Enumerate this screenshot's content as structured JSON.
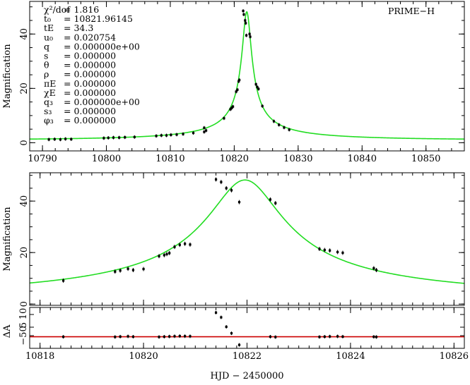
{
  "chart_data": [
    {
      "type": "scatter",
      "panel": "full light curve",
      "ylabel": "Magnification",
      "xlim": [
        10788,
        10856
      ],
      "ylim": [
        -3,
        52
      ],
      "x_ticks": [
        10790,
        10800,
        10810,
        10820,
        10830,
        10840,
        10850
      ],
      "y_ticks": [
        0,
        20,
        40
      ],
      "instrument_label": "PRIME−H",
      "model_color": "#22dd22",
      "point_color": "#000000",
      "fit_parameters": [
        {
          "label": "χ²/dof",
          "value": "= 1.816"
        },
        {
          "label": "t₀",
          "value": "= 10821.96145"
        },
        {
          "label": "tE",
          "value": "= 34.3"
        },
        {
          "label": "u₀",
          "value": "= 0.020754"
        },
        {
          "label": "q",
          "value": "= 0.000000e+00"
        },
        {
          "label": "s",
          "value": "= 0.000000"
        },
        {
          "label": "θ",
          "value": "= 0.000000"
        },
        {
          "label": "ρ",
          "value": "= 0.000000"
        },
        {
          "label": "πE",
          "value": "= 0.000000"
        },
        {
          "label": "χE",
          "value": "= 0.000000"
        },
        {
          "label": "q₃",
          "value": "= 0.000000e+00"
        },
        {
          "label": "s₃",
          "value": "= 0.000000"
        },
        {
          "label": "φ₃",
          "value": "= 0.000000"
        }
      ],
      "model": {
        "t0": 10821.96145,
        "tE": 34.3,
        "u0": 0.020754,
        "baseline": 1.0
      },
      "series": [
        {
          "values": [
            [
              10791.0,
              1.2
            ],
            [
              10791.9,
              1.3
            ],
            [
              10792.8,
              1.2
            ],
            [
              10793.6,
              1.4
            ],
            [
              10794.5,
              1.3
            ],
            [
              10799.6,
              1.7
            ],
            [
              10800.3,
              1.8
            ],
            [
              10801.1,
              1.9
            ],
            [
              10802.0,
              1.9
            ],
            [
              10802.9,
              2.0
            ],
            [
              10804.4,
              2.1
            ],
            [
              10807.8,
              2.5
            ],
            [
              10808.6,
              2.7
            ],
            [
              10809.4,
              2.7
            ],
            [
              10810.1,
              2.9
            ],
            [
              10811.0,
              3.0
            ],
            [
              10812.0,
              3.2
            ],
            [
              10813.6,
              3.6
            ],
            [
              10815.3,
              4.0
            ],
            [
              10815.3,
              5.5
            ],
            [
              10815.6,
              4.5
            ],
            [
              10818.4,
              9.0
            ],
            [
              10819.4,
              12.3
            ],
            [
              10819.6,
              12.8
            ],
            [
              10819.8,
              13.3
            ],
            [
              10820.3,
              18.8
            ],
            [
              10820.5,
              19.5
            ],
            [
              10820.7,
              22.6
            ],
            [
              10820.8,
              23.1
            ],
            [
              10821.4,
              48.5
            ],
            [
              10821.5,
              47.2
            ],
            [
              10821.7,
              45.0
            ],
            [
              10821.8,
              44.0
            ],
            [
              10821.9,
              39.5
            ],
            [
              10822.4,
              40.0
            ],
            [
              10822.5,
              39.0
            ],
            [
              10823.4,
              21.5
            ],
            [
              10823.6,
              20.5
            ],
            [
              10823.8,
              19.8
            ],
            [
              10824.4,
              13.5
            ],
            [
              10826.2,
              7.9
            ],
            [
              10827.0,
              6.6
            ],
            [
              10827.8,
              5.6
            ],
            [
              10828.6,
              4.8
            ]
          ]
        }
      ]
    },
    {
      "type": "scatter",
      "panel": "peak zoom",
      "ylabel": "Magnification",
      "xlim": [
        10817.8,
        10826.2
      ],
      "ylim": [
        -0.5,
        51
      ],
      "y_ticks": [
        0,
        20,
        40
      ],
      "model_color": "#22dd22",
      "series": [
        {
          "values": [
            [
              10818.45,
              9.1
            ],
            [
              10819.45,
              12.6
            ],
            [
              10819.55,
              13.0
            ],
            [
              10819.7,
              13.7
            ],
            [
              10819.8,
              13.2
            ],
            [
              10820.0,
              13.6
            ],
            [
              10820.3,
              18.6
            ],
            [
              10820.4,
              19.0
            ],
            [
              10820.45,
              19.4
            ],
            [
              10820.5,
              19.8
            ],
            [
              10820.6,
              22.2
            ],
            [
              10820.7,
              23.0
            ],
            [
              10820.8,
              23.4
            ],
            [
              10820.9,
              23.1
            ],
            [
              10821.4,
              48.4
            ],
            [
              10821.5,
              47.4
            ],
            [
              10821.6,
              45.0
            ],
            [
              10821.7,
              44.2
            ],
            [
              10821.85,
              39.6
            ],
            [
              10822.45,
              40.6
            ],
            [
              10822.55,
              39.2
            ],
            [
              10823.4,
              21.4
            ],
            [
              10823.5,
              21.0
            ],
            [
              10823.6,
              20.8
            ],
            [
              10823.75,
              20.2
            ],
            [
              10823.85,
              19.9
            ],
            [
              10824.45,
              13.9
            ],
            [
              10824.5,
              13.2
            ]
          ]
        }
      ]
    },
    {
      "type": "scatter",
      "panel": "residuals",
      "ylabel": "ΔA",
      "xlabel": "HJD − 2450000",
      "xlim": [
        10817.8,
        10826.2
      ],
      "ylim": [
        -75,
        20
      ],
      "x_ticks": [
        10818,
        10820,
        10822,
        10824,
        10826
      ],
      "y_tick_labels": [
        "−50",
        "5",
        "10"
      ],
      "residual_line_color": "#cc0000",
      "series": [
        {
          "values": [
            [
              10818.45,
              -48.2
            ],
            [
              10819.45,
              -48.6
            ],
            [
              10819.55,
              -47.8
            ],
            [
              10819.7,
              -47.2
            ],
            [
              10819.8,
              -48.0
            ],
            [
              10820.3,
              -48.6
            ],
            [
              10820.4,
              -48.0
            ],
            [
              10820.5,
              -47.5
            ],
            [
              10820.6,
              -47.0
            ],
            [
              10820.7,
              -46.5
            ],
            [
              10820.8,
              -46.8
            ],
            [
              10820.9,
              -47.0
            ],
            [
              10821.4,
              8.0
            ],
            [
              10821.5,
              -3.0
            ],
            [
              10821.6,
              -25.0
            ],
            [
              10821.7,
              -40.0
            ],
            [
              10821.85,
              -67.0
            ],
            [
              10822.45,
              -48.0
            ],
            [
              10822.55,
              -48.8
            ],
            [
              10823.4,
              -48.5
            ],
            [
              10823.5,
              -48.0
            ],
            [
              10823.6,
              -47.5
            ],
            [
              10823.75,
              -47.2
            ],
            [
              10823.85,
              -47.8
            ],
            [
              10824.45,
              -48.2
            ],
            [
              10824.5,
              -48.6
            ]
          ]
        }
      ]
    }
  ]
}
